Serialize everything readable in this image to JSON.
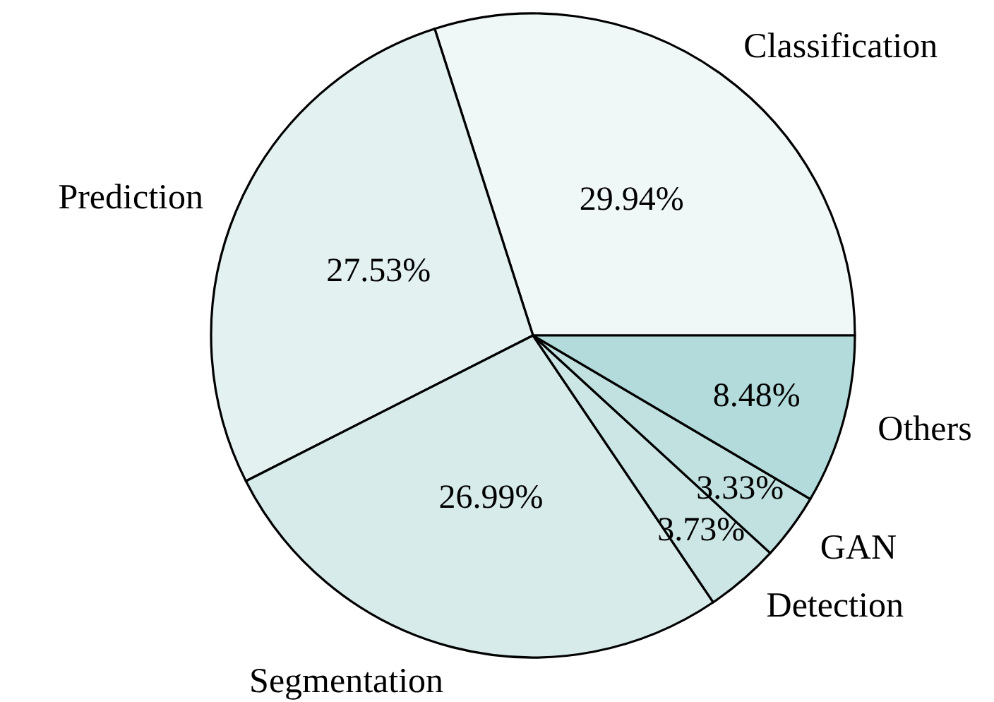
{
  "chart_data": {
    "type": "pie",
    "categories": [
      "Classification",
      "Prediction",
      "Segmentation",
      "Detection",
      "GAN",
      "Others"
    ],
    "values": [
      29.94,
      27.53,
      26.99,
      3.73,
      3.33,
      8.48
    ],
    "colors": [
      "#f0f7f7",
      "#e3f1f1",
      "#d7ebeb",
      "#cce6e6",
      "#c1e1e1",
      "#b3dbdb"
    ],
    "value_labels": [
      "29.94%",
      "27.53%",
      "26.99%",
      "3.73%",
      "3.33%",
      "8.48%"
    ]
  }
}
